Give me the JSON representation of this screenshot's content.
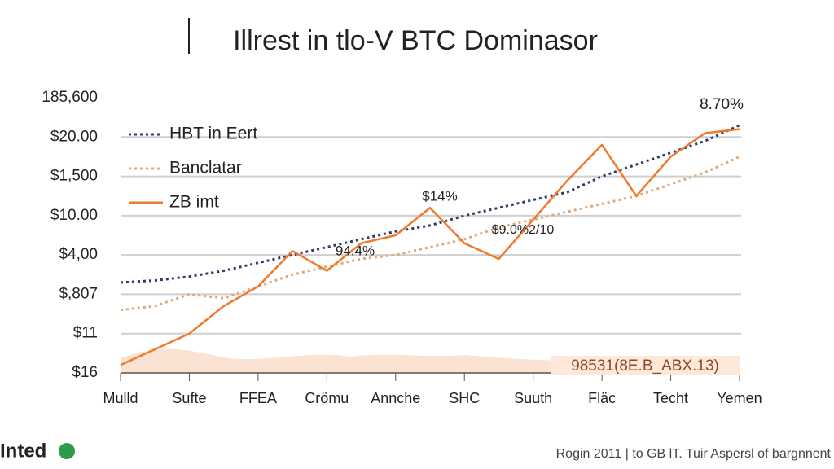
{
  "chart_data": {
    "type": "line",
    "title": "Illrest  in tlo-V BTC Dominasor",
    "categories": [
      "Mulld",
      "Sufte",
      "FFEA",
      "Crömu",
      "Annche",
      "SHC",
      "Suuth",
      "Fläc",
      "Techt",
      "Yemen"
    ],
    "x": [
      0,
      0.5,
      1,
      1.5,
      2,
      2.5,
      3,
      3.5,
      4,
      4.5,
      5,
      5.5,
      6,
      6.5,
      7,
      7.5,
      8,
      8.5,
      9
    ],
    "xlim": [
      0,
      9
    ],
    "ylim": [
      0,
      7
    ],
    "yticks": [
      {
        "value": 0,
        "label": "$16"
      },
      {
        "value": 1,
        "label": "$11"
      },
      {
        "value": 2,
        "label": "$,807"
      },
      {
        "value": 3,
        "label": "$4,00"
      },
      {
        "value": 4,
        "label": "$10.00"
      },
      {
        "value": 5,
        "label": "$1,500"
      },
      {
        "value": 6,
        "label": "$20.00"
      },
      {
        "value": 7,
        "label": "185,600"
      }
    ],
    "grid": true,
    "legend": "top-left",
    "series": [
      {
        "name": "HBT in Eert",
        "color": "#2e3a66",
        "dash": "dotted",
        "values": [
          2.3,
          2.35,
          2.45,
          2.6,
          2.8,
          3.0,
          3.2,
          3.4,
          3.6,
          3.75,
          4.0,
          4.2,
          4.4,
          4.6,
          5.0,
          5.3,
          5.6,
          5.9,
          6.3
        ]
      },
      {
        "name": "Banclatar",
        "color": "#e0a878",
        "dash": "dotted",
        "values": [
          1.6,
          1.7,
          2.0,
          1.9,
          2.2,
          2.5,
          2.7,
          2.9,
          3.0,
          3.2,
          3.4,
          3.7,
          3.9,
          4.1,
          4.3,
          4.5,
          4.8,
          5.1,
          5.5
        ]
      },
      {
        "name": "ZB imt",
        "color": "#ee7a2e",
        "dash": "solid",
        "values": [
          0.2,
          0.6,
          1.0,
          1.7,
          2.2,
          3.1,
          2.6,
          3.3,
          3.5,
          4.2,
          3.3,
          2.9,
          3.9,
          4.9,
          5.8,
          4.5,
          5.5,
          6.1,
          6.2
        ]
      }
    ],
    "annotations": [
      "8.70%",
      "$14%",
      "$9.0%2/10",
      "94.4%",
      "98531(8E.B_ABX.13)"
    ],
    "footer": {
      "logo": "Inted",
      "note": "Rogin 2011 | to GB lT. Tuir Aspersl of bargnnent"
    }
  }
}
